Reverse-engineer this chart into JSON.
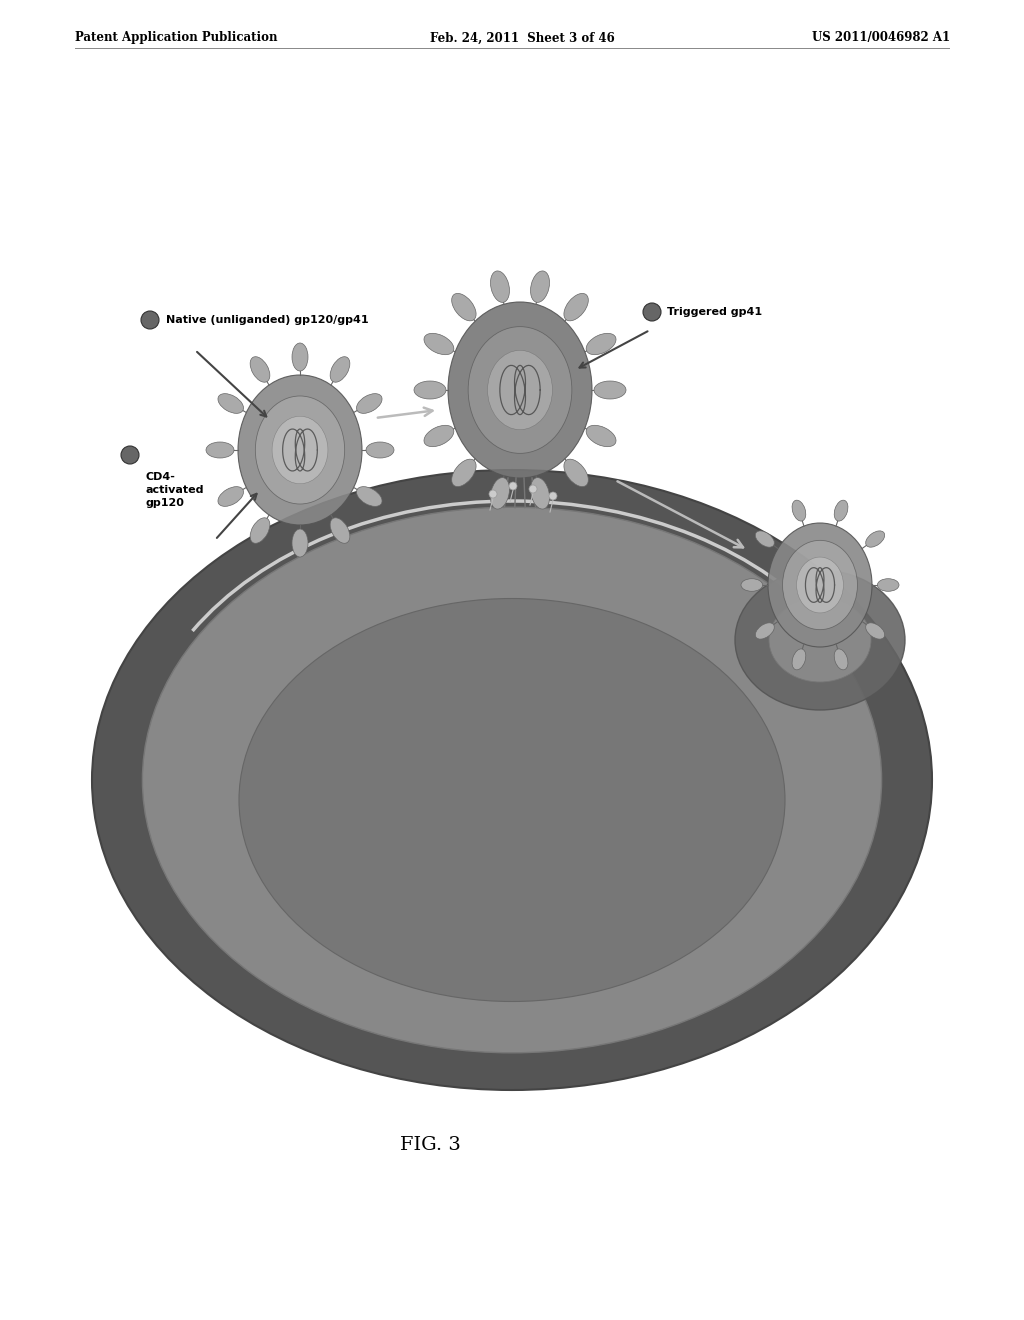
{
  "header_left": "Patent Application Publication",
  "header_mid": "Feb. 24, 2011  Sheet 3 of 46",
  "header_right": "US 2011/0046982 A1",
  "figure_label": "FIG. 3",
  "label1": "Native (unliganded) gp120/gp41",
  "label2": "Triggered gp41",
  "label3": "CD4-\nactivated\ngp120",
  "bg_color": "#ffffff"
}
